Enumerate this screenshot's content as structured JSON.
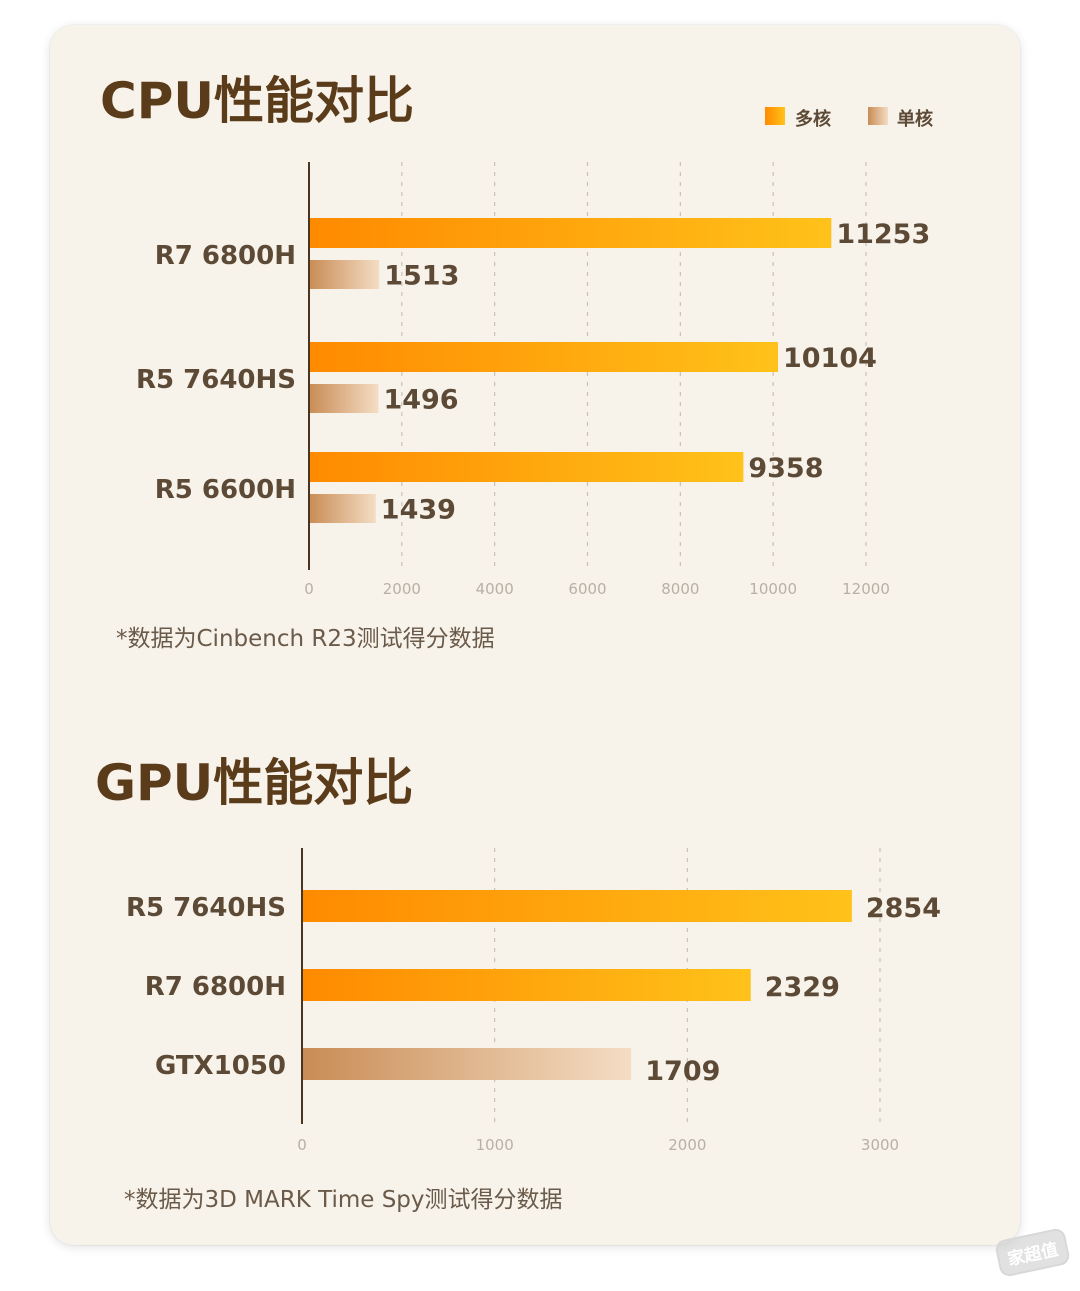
{
  "cpu": {
    "title": "CPU性能对比",
    "note": "*数据为Cinbench R23测试得分数据",
    "legend": [
      {
        "label": "多核",
        "color": "#ff9500"
      },
      {
        "label": "单核",
        "color": "#d9a97c"
      }
    ]
  },
  "gpu": {
    "title": "GPU性能对比",
    "note": "*数据为3D MARK Time Spy测试得分数据"
  },
  "watermark": "家超值",
  "chart_data": [
    {
      "type": "bar",
      "orientation": "horizontal",
      "title": "CPU性能对比",
      "categories": [
        "R7 6800H",
        "R5 7640HS",
        "R5 6600H"
      ],
      "series": [
        {
          "name": "多核",
          "values": [
            11253,
            10104,
            9358
          ],
          "color": "#ff9500"
        },
        {
          "name": "单核",
          "values": [
            1513,
            1496,
            1439
          ],
          "color": "#d9a97c"
        }
      ],
      "xlim": [
        0,
        12000
      ],
      "xticks": [
        0,
        2000,
        4000,
        6000,
        8000,
        10000,
        12000
      ],
      "grid": true,
      "legend": "top-right"
    },
    {
      "type": "bar",
      "orientation": "horizontal",
      "title": "GPU性能对比",
      "categories": [
        "R5 7640HS",
        "R7 6800H",
        "GTX1050"
      ],
      "values": [
        2854,
        2329,
        1709
      ],
      "bar_styles": [
        "orange",
        "orange",
        "tan"
      ],
      "xlim": [
        0,
        3000
      ],
      "xticks": [
        0,
        1000,
        2000,
        3000
      ],
      "grid": true
    }
  ]
}
